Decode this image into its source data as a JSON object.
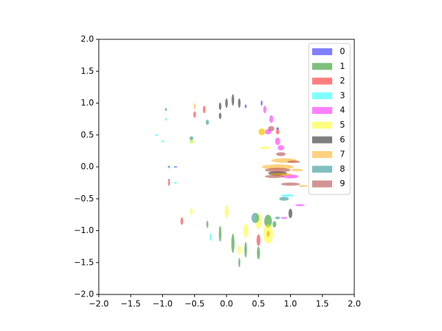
{
  "chart_data": {
    "type": "scatter",
    "xlim": [
      -2,
      2
    ],
    "ylim": [
      -2,
      2
    ],
    "xticks": [
      {
        "value": -2,
        "label": "−2.0"
      },
      {
        "value": -1.5,
        "label": "−1.5"
      },
      {
        "value": -1,
        "label": "−1.0"
      },
      {
        "value": -0.5,
        "label": "−0.5"
      },
      {
        "value": 0,
        "label": "0.0"
      },
      {
        "value": 0.5,
        "label": "0.5"
      },
      {
        "value": 1,
        "label": "1.0"
      },
      {
        "value": 1.5,
        "label": "1.5"
      },
      {
        "value": 2,
        "label": "2.0"
      }
    ],
    "yticks": [
      {
        "value": -2,
        "label": "−2.0"
      },
      {
        "value": -1.5,
        "label": "−1.5"
      },
      {
        "value": -1,
        "label": "−1.0"
      },
      {
        "value": -0.5,
        "label": "−0.5"
      },
      {
        "value": 0,
        "label": "0.0"
      },
      {
        "value": 0.5,
        "label": "0.5"
      },
      {
        "value": 1,
        "label": "1.0"
      },
      {
        "value": 1.5,
        "label": "1.5"
      },
      {
        "value": 2,
        "label": "2.0"
      }
    ],
    "legend": "upper right",
    "series": [
      {
        "name": "0",
        "color": "blue",
        "x": [
          -0.8,
          0.55,
          0.3,
          0.8,
          -0.9
        ],
        "y": [
          0,
          1.0,
          0.95,
          0.6,
          -0.2
        ],
        "width": [
          0.06,
          0.03,
          0.03,
          0.04,
          0.03
        ],
        "height": [
          0.02,
          0.08,
          0.06,
          0.04,
          0.02
        ]
      },
      {
        "name": "1",
        "color": "green",
        "x": [
          -0.1,
          0.1,
          0.3,
          0.5,
          0.65,
          0.2,
          -0.3,
          0.75
        ],
        "y": [
          -1.05,
          -1.2,
          -1.3,
          -1.35,
          -0.85,
          -1.5,
          -0.9,
          -0.9
        ],
        "width": [
          0.04,
          0.05,
          0.04,
          0.05,
          0.12,
          0.03,
          0.03,
          0.06
        ],
        "height": [
          0.25,
          0.3,
          0.25,
          0.2,
          0.2,
          0.15,
          0.12,
          0.1
        ]
      },
      {
        "name": "2",
        "color": "red",
        "x": [
          -0.5,
          -0.35,
          -0.9,
          0.5,
          -0.7,
          0.8,
          0.65
        ],
        "y": [
          0.82,
          0.9,
          -0.25,
          -1.15,
          -0.85,
          0.55,
          -1.05
        ],
        "width": [
          0.04,
          0.04,
          0.03,
          0.06,
          0.04,
          0.05,
          0.04
        ],
        "height": [
          0.1,
          0.12,
          0.1,
          0.18,
          0.12,
          0.08,
          0.1
        ]
      },
      {
        "name": "3",
        "color": "cyan",
        "x": [
          -1.0,
          -1.1,
          -0.95,
          -0.55,
          0.95,
          -0.8,
          -0.25
        ],
        "y": [
          0.4,
          0.5,
          0.75,
          0.4,
          -0.45,
          -0.25,
          -1.1
        ],
        "width": [
          0.05,
          0.04,
          0.03,
          0.05,
          0.2,
          0.04,
          0.03
        ],
        "height": [
          0.03,
          0.03,
          0.05,
          0.05,
          0.04,
          0.03,
          0.12
        ]
      },
      {
        "name": "4",
        "color": "magenta",
        "x": [
          0.6,
          0.7,
          0.65,
          0.85,
          1.0,
          1.15,
          0.8,
          0.9
        ],
        "y": [
          0.9,
          0.75,
          0.55,
          0.3,
          -0.15,
          -0.6,
          0.4,
          -0.8
        ],
        "width": [
          0.05,
          0.06,
          0.1,
          0.1,
          0.25,
          0.15,
          0.08,
          0.1
        ],
        "height": [
          0.12,
          0.12,
          0.08,
          0.08,
          0.06,
          0.03,
          0.12,
          0.03
        ]
      },
      {
        "name": "5",
        "color": "yellow",
        "x": [
          0.65,
          0.3,
          0.0,
          -0.55,
          0.6,
          0.5,
          -0.55,
          0.2,
          0.55
        ],
        "y": [
          -1.05,
          -1.0,
          -0.7,
          0.4,
          0.3,
          -0.85,
          -0.7,
          -1.3,
          0.55
        ],
        "width": [
          0.15,
          0.08,
          0.06,
          0.06,
          0.15,
          0.1,
          0.04,
          0.05,
          0.1
        ],
        "height": [
          0.3,
          0.2,
          0.2,
          0.08,
          0.04,
          0.25,
          0.12,
          0.15,
          0.12
        ]
      },
      {
        "name": "6",
        "color": "black",
        "x": [
          0.0,
          0.1,
          0.2,
          -0.1,
          -0.1,
          1.0,
          0.8
        ],
        "y": [
          1.0,
          1.05,
          1.0,
          0.95,
          0.8,
          -0.73,
          -0.1
        ],
        "width": [
          0.04,
          0.04,
          0.04,
          0.04,
          0.04,
          0.06,
          0.3
        ],
        "height": [
          0.15,
          0.18,
          0.15,
          0.12,
          0.1,
          0.15,
          0.06
        ]
      },
      {
        "name": "7",
        "color": "orange",
        "x": [
          0.8,
          0.85,
          0.9,
          1.2,
          0.55,
          1.1,
          -0.5
        ],
        "y": [
          0.0,
          -0.12,
          0.1,
          -0.3,
          0.55,
          -0.05,
          0.95
        ],
        "width": [
          0.5,
          0.35,
          0.4,
          0.15,
          0.1,
          0.2,
          0.03
        ],
        "height": [
          0.08,
          0.05,
          0.07,
          0.03,
          0.1,
          0.04,
          0.1
        ]
      },
      {
        "name": "8",
        "color": "teal",
        "x": [
          0.45,
          0.9,
          -0.55,
          -0.3,
          -0.9,
          0.8,
          -0.95
        ],
        "y": [
          -0.8,
          -0.5,
          0.45,
          0.7,
          0.0,
          -0.8,
          0.9
        ],
        "width": [
          0.12,
          0.15,
          0.06,
          0.05,
          0.04,
          0.08,
          0.03
        ],
        "height": [
          0.16,
          0.06,
          0.06,
          0.08,
          0.04,
          0.04,
          0.05
        ]
      },
      {
        "name": "9",
        "color": "brown",
        "x": [
          0.8,
          1.0,
          0.85,
          0.7,
          0.75,
          1.05
        ],
        "y": [
          -0.05,
          -0.27,
          0.2,
          0.6,
          -0.15,
          0.08
        ],
        "width": [
          0.4,
          0.3,
          0.15,
          0.1,
          0.3,
          0.2
        ],
        "height": [
          0.07,
          0.05,
          0.06,
          0.08,
          0.05,
          0.04
        ]
      }
    ]
  }
}
